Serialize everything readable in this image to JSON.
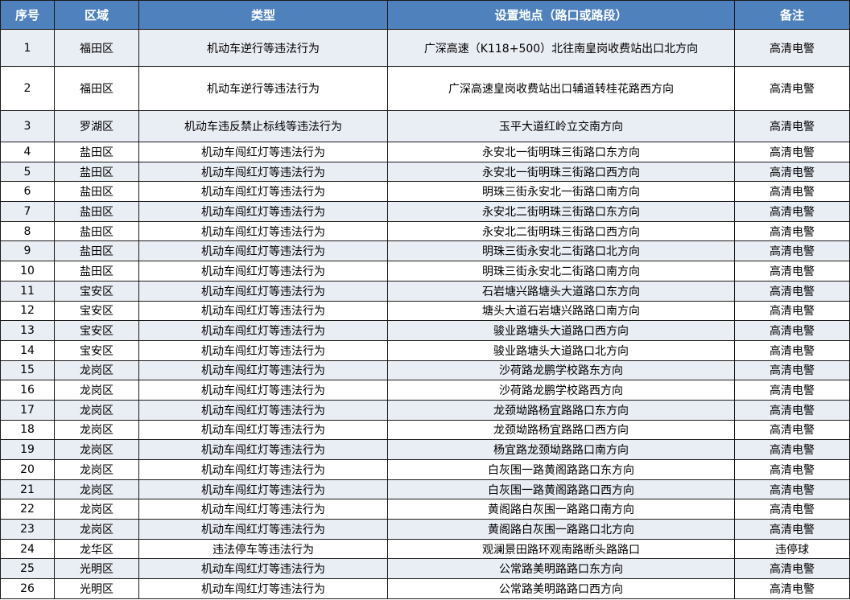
{
  "headers": [
    "序号",
    "区域",
    "类型",
    "设置地点（路口或路段）",
    "备注"
  ],
  "rows": [
    [
      "1",
      "福田区",
      "机动车逆行等违法行为",
      "广深高速（K118+500）北往南皇岗收费站出口北方向",
      "高清电警"
    ],
    [
      "2",
      "福田区",
      "机动车逆行等违法行为",
      "广深高速皇岗收费站出口辅道转桂花路西方向",
      "高清电警"
    ],
    [
      "3",
      "罗湖区",
      "机动车违反禁止标线等违法行为",
      "玉平大道红岭立交南方向",
      "高清电警"
    ],
    [
      "4",
      "盐田区",
      "机动车闯红灯等违法行为",
      "永安北一街明珠三街路口东方向",
      "高清电警"
    ],
    [
      "5",
      "盐田区",
      "机动车闯红灯等违法行为",
      "永安北一街明珠三街路口西方向",
      "高清电警"
    ],
    [
      "6",
      "盐田区",
      "机动车闯红灯等违法行为",
      "明珠三街永安北一街路口南方向",
      "高清电警"
    ],
    [
      "7",
      "盐田区",
      "机动车闯红灯等违法行为",
      "永安北二街明珠三街路口东方向",
      "高清电警"
    ],
    [
      "8",
      "盐田区",
      "机动车闯红灯等违法行为",
      "永安北二街明珠三街路口西方向",
      "高清电警"
    ],
    [
      "9",
      "盐田区",
      "机动车闯红灯等违法行为",
      "明珠三街永安北二街路口北方向",
      "高清电警"
    ],
    [
      "10",
      "盐田区",
      "机动车闯红灯等违法行为",
      "明珠三街永安北二街路口南方向",
      "高清电警"
    ],
    [
      "11",
      "宝安区",
      "机动车闯红灯等违法行为",
      "石岩塘兴路塘头大道路口东方向",
      "高清电警"
    ],
    [
      "12",
      "宝安区",
      "机动车闯红灯等违法行为",
      "塘头大道石岩塘兴路路口南方向",
      "高清电警"
    ],
    [
      "13",
      "宝安区",
      "机动车闯红灯等违法行为",
      "骏业路塘头大道路口西方向",
      "高清电警"
    ],
    [
      "14",
      "宝安区",
      "机动车闯红灯等违法行为",
      "骏业路塘头大道路口北方向",
      "高清电警"
    ],
    [
      "15",
      "龙岗区",
      "机动车闯红灯等违法行为",
      "沙荷路龙鹏学校路东方向",
      "高清电警"
    ],
    [
      "16",
      "龙岗区",
      "机动车闯红灯等违法行为",
      "沙荷路龙鹏学校路西方向",
      "高清电警"
    ],
    [
      "17",
      "龙岗区",
      "机动车闯红灯等违法行为",
      "龙颈坳路杨宜路路口东方向",
      "高清电警"
    ],
    [
      "18",
      "龙岗区",
      "机动车闯红灯等违法行为",
      "龙颈坳路杨宜路路口西方向",
      "高清电警"
    ],
    [
      "19",
      "龙岗区",
      "机动车闯红灯等违法行为",
      "杨宜路龙颈坳路路口南方向",
      "高清电警"
    ],
    [
      "20",
      "龙岗区",
      "机动车闯红灯等违法行为",
      "白灰围一路黄阁路路口东方向",
      "高清电警"
    ],
    [
      "21",
      "龙岗区",
      "机动车闯红灯等违法行为",
      "白灰围一路黄阁路路口西方向",
      "高清电警"
    ],
    [
      "22",
      "龙岗区",
      "机动车闯红灯等违法行为",
      "黄阁路白灰围一路路口南方向",
      "高清电警"
    ],
    [
      "23",
      "龙岗区",
      "机动车闯红灯等违法行为",
      "黄阁路白灰围一路路口北方向",
      "高清电警"
    ],
    [
      "24",
      "龙华区",
      "违法停车等违法行为",
      "观澜景田路环观南路断头路路口",
      "违停球"
    ],
    [
      "25",
      "光明区",
      "机动车闯红灯等违法行为",
      "公常路美明路路口东方向",
      "高清电警"
    ],
    [
      "26",
      "光明区",
      "机动车闯红灯等违法行为",
      "公常路美明路路口西方向",
      "高清电警"
    ]
  ],
  "colors": {
    "header_bg": "#4f81bd",
    "stripe_bg": "#e9edf4"
  }
}
